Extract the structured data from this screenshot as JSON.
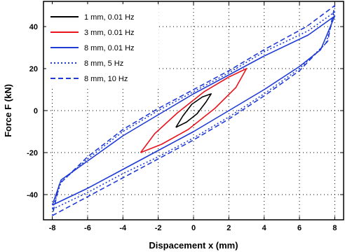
{
  "chart_data": {
    "type": "line",
    "title": "",
    "xlabel": "Dispacement x (mm)",
    "ylabel": "Force F (kN)",
    "xlim": [
      -8.5,
      8.5
    ],
    "ylim": [
      -52,
      52
    ],
    "xticks": [
      -8,
      -6,
      -4,
      -2,
      0,
      2,
      4,
      6,
      8
    ],
    "yticks": [
      -40,
      -20,
      0,
      20,
      40
    ],
    "grid": "dotted",
    "legend_position": "top-left",
    "series": [
      {
        "name": "1 mm, 0.01 Hz",
        "color": "#000000",
        "dash": "solid",
        "points": [
          [
            -1,
            -8
          ],
          [
            -0.4,
            -5.5
          ],
          [
            0.2,
            -1.5
          ],
          [
            0.7,
            4
          ],
          [
            1,
            8
          ],
          [
            0.5,
            6.5
          ],
          [
            -0.1,
            3
          ],
          [
            -0.6,
            -2.5
          ],
          [
            -1,
            -8
          ]
        ]
      },
      {
        "name": "3 mm, 0.01 Hz",
        "color": "#e8141e",
        "dash": "solid",
        "points": [
          [
            -3,
            -20
          ],
          [
            -1.8,
            -16
          ],
          [
            -0.3,
            -9
          ],
          [
            1.2,
            1
          ],
          [
            2.4,
            11
          ],
          [
            3,
            20
          ],
          [
            2,
            16
          ],
          [
            0.6,
            9
          ],
          [
            -0.9,
            -1
          ],
          [
            -2.2,
            -11
          ],
          [
            -3,
            -20
          ]
        ]
      },
      {
        "name": "8 mm, 0.01 Hz",
        "color": "#1f3bd6",
        "dash": "solid",
        "points": [
          [
            -8,
            -45
          ],
          [
            -6,
            -37
          ],
          [
            -4,
            -28
          ],
          [
            -2,
            -19
          ],
          [
            0,
            -10
          ],
          [
            2,
            0
          ],
          [
            4,
            10
          ],
          [
            6,
            21
          ],
          [
            7.2,
            29
          ],
          [
            8,
            45
          ],
          [
            6.5,
            36
          ],
          [
            4,
            26
          ],
          [
            2,
            17
          ],
          [
            0,
            8
          ],
          [
            -2,
            -2
          ],
          [
            -4,
            -12
          ],
          [
            -6,
            -24
          ],
          [
            -7.5,
            -33
          ],
          [
            -8,
            -45
          ]
        ]
      },
      {
        "name": "8 mm, 5 Hz",
        "color": "#1f3bd6",
        "dash": "2,3",
        "points": [
          [
            -8,
            -47
          ],
          [
            -6,
            -39
          ],
          [
            -4,
            -30
          ],
          [
            -2,
            -22
          ],
          [
            0,
            -13
          ],
          [
            2,
            -3
          ],
          [
            4,
            8
          ],
          [
            6,
            20
          ],
          [
            7.5,
            32
          ],
          [
            8,
            47
          ],
          [
            6.5,
            38
          ],
          [
            4,
            28
          ],
          [
            2,
            18
          ],
          [
            0,
            9
          ],
          [
            -2,
            0
          ],
          [
            -4,
            -10
          ],
          [
            -6,
            -23
          ],
          [
            -7.5,
            -34
          ],
          [
            -8,
            -47
          ]
        ]
      },
      {
        "name": "8 mm, 10 Hz",
        "color": "#1f3bd6",
        "dash": "7,4",
        "points": [
          [
            -8,
            -50
          ],
          [
            -6,
            -41
          ],
          [
            -4,
            -32
          ],
          [
            -2,
            -23
          ],
          [
            0,
            -14
          ],
          [
            2,
            -4
          ],
          [
            4,
            7
          ],
          [
            6,
            19
          ],
          [
            7.6,
            33
          ],
          [
            8,
            50
          ],
          [
            6.4,
            40
          ],
          [
            4,
            29
          ],
          [
            2,
            19
          ],
          [
            0,
            10
          ],
          [
            -2,
            1
          ],
          [
            -4,
            -9
          ],
          [
            -6,
            -22
          ],
          [
            -7.6,
            -35
          ],
          [
            -8,
            -50
          ]
        ]
      }
    ]
  }
}
